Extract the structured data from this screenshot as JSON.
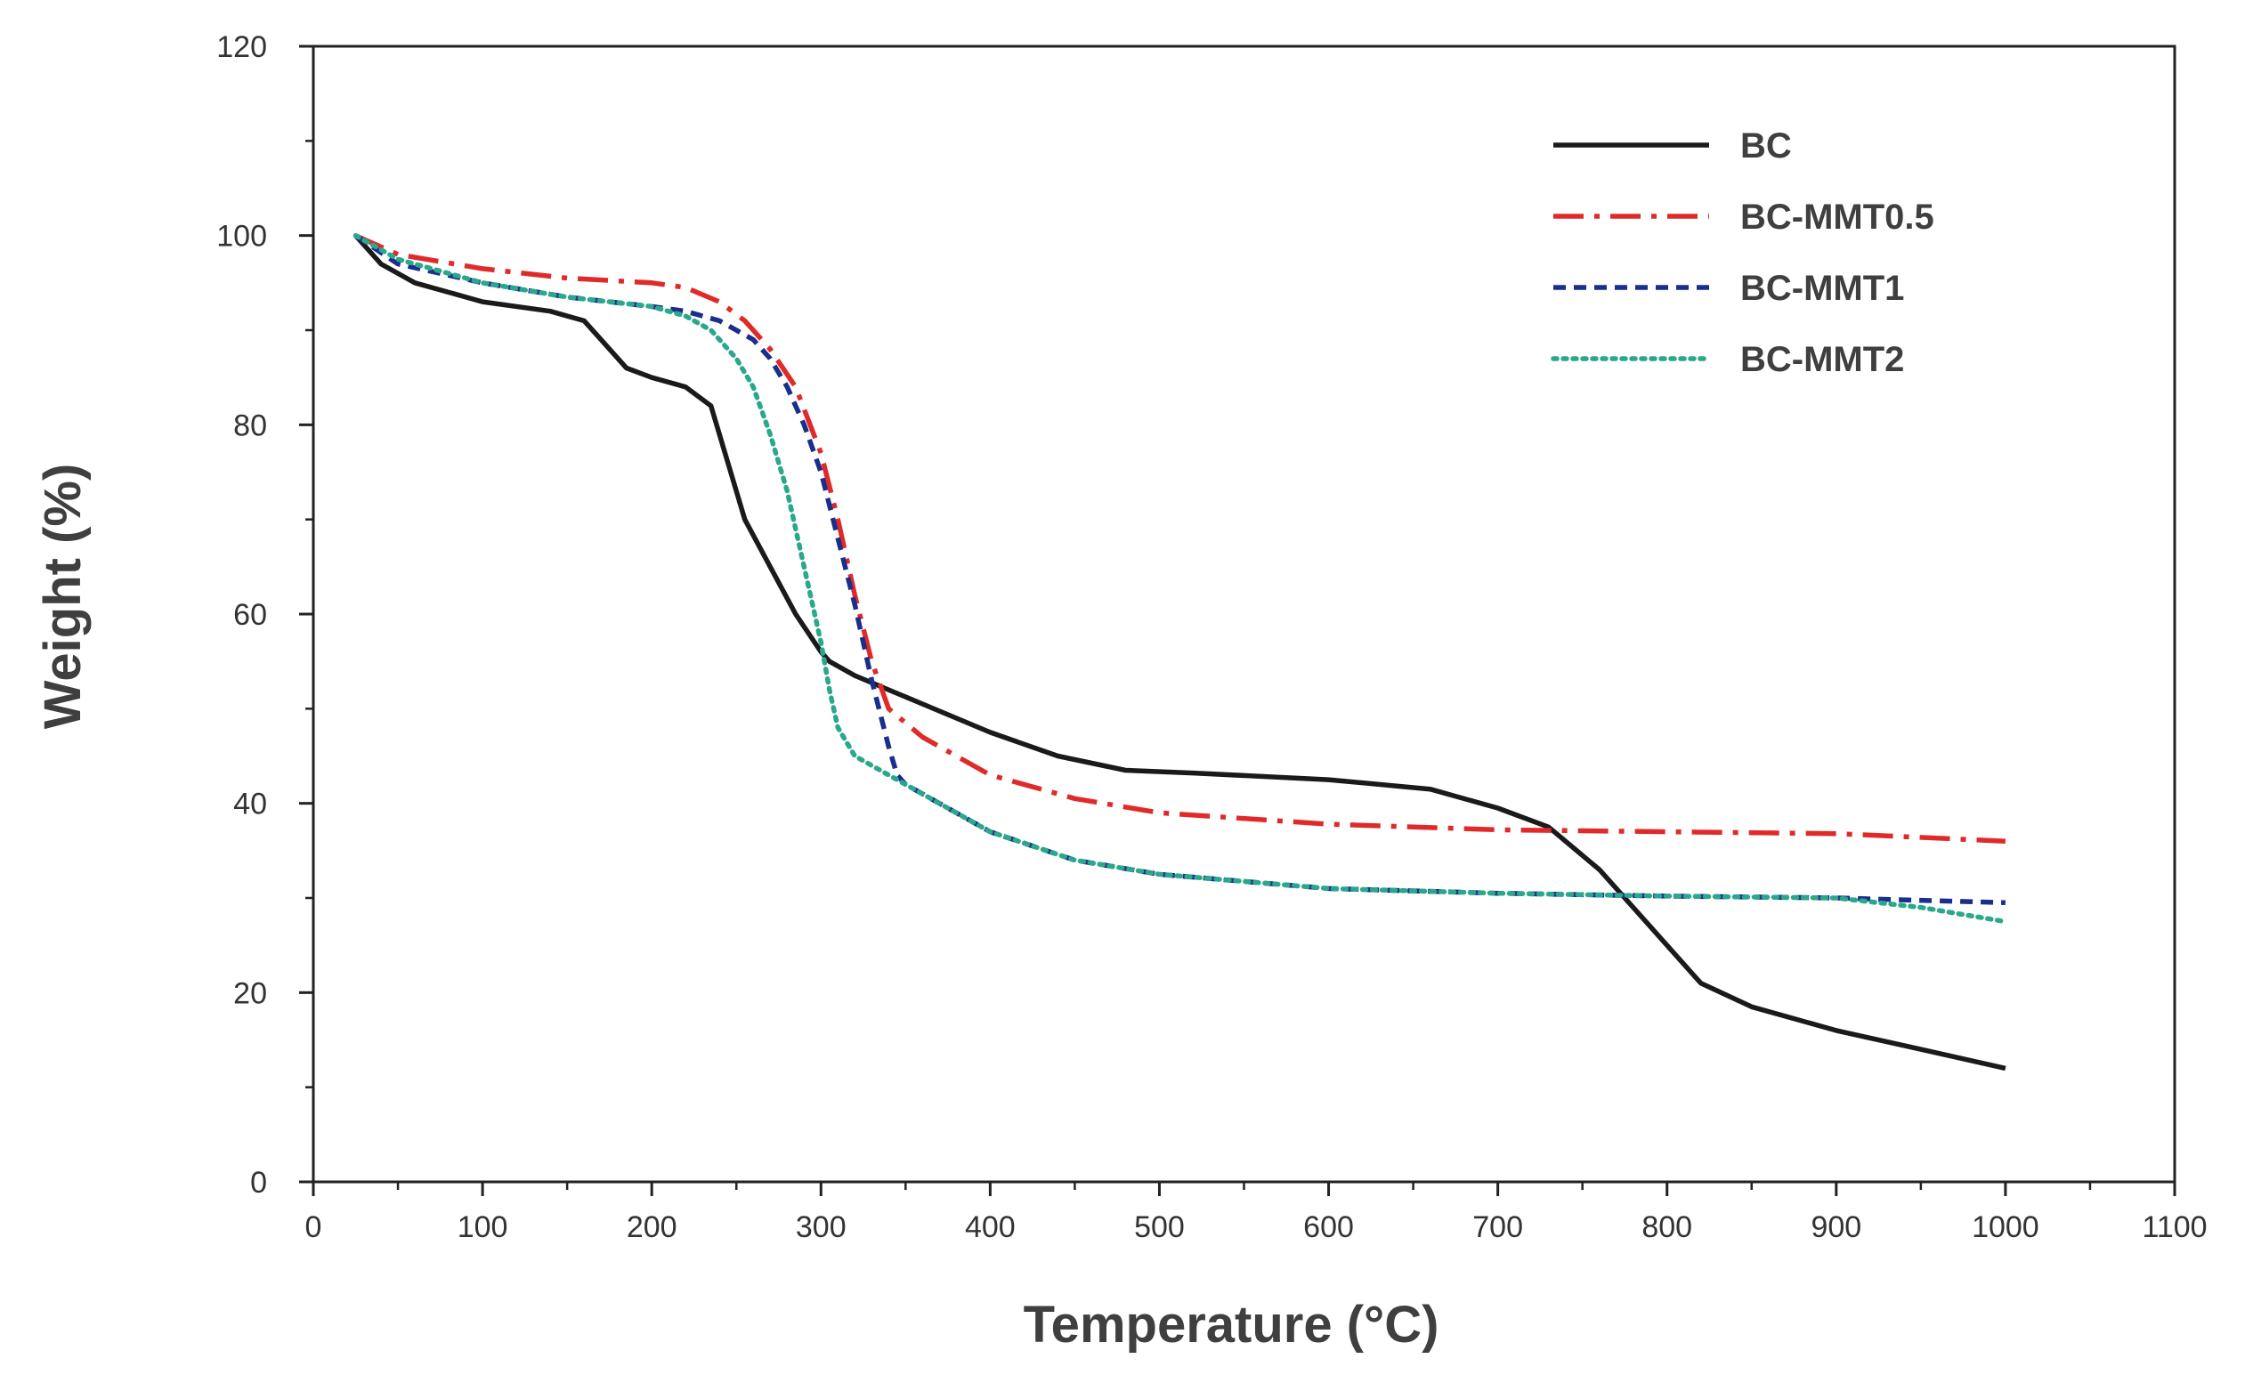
{
  "chart_data": {
    "type": "line",
    "title": "",
    "xlabel": "Temperature (°C)",
    "ylabel": "Weight (%)",
    "xlim": [
      0,
      1100
    ],
    "ylim": [
      0,
      120
    ],
    "xticks": [
      "0",
      "100",
      "200",
      "300",
      "400",
      "500",
      "600",
      "700",
      "800",
      "900",
      "1000",
      "1100"
    ],
    "yticks": [
      "0",
      "20",
      "40",
      "60",
      "80",
      "100",
      "120"
    ],
    "grid": false,
    "legend_position": "top-right",
    "series": [
      {
        "name": "BC",
        "color": "#1a1a1a",
        "dash": "solid",
        "x": [
          25,
          40,
          60,
          100,
          140,
          160,
          170,
          185,
          200,
          220,
          235,
          245,
          255,
          270,
          285,
          300,
          305,
          320,
          340,
          360,
          400,
          440,
          480,
          520,
          600,
          660,
          700,
          730,
          760,
          780,
          800,
          820,
          850,
          900,
          950,
          1000
        ],
        "y": [
          100,
          97,
          95,
          93,
          92,
          91,
          89,
          86,
          85,
          84,
          82,
          76,
          70,
          65,
          60,
          56,
          55,
          53.5,
          52,
          50.5,
          47.5,
          45,
          43.5,
          43.2,
          42.5,
          41.5,
          39.5,
          37.5,
          33,
          29,
          25,
          21,
          18.5,
          16,
          14,
          12
        ]
      },
      {
        "name": "BC-MMT0.5",
        "color": "#e02a2a",
        "dash": "dashdot",
        "x": [
          25,
          50,
          100,
          150,
          200,
          220,
          240,
          255,
          270,
          285,
          300,
          310,
          320,
          330,
          340,
          360,
          400,
          450,
          500,
          600,
          700,
          800,
          900,
          1000
        ],
        "y": [
          100,
          98,
          96.5,
          95.5,
          95,
          94.5,
          93,
          91,
          88,
          84,
          77,
          70,
          62,
          55,
          50,
          47,
          43,
          40.5,
          39,
          37.8,
          37.2,
          37,
          36.8,
          36
        ]
      },
      {
        "name": "BC-MMT1",
        "color": "#1a2e8c",
        "dash": "dash",
        "x": [
          25,
          50,
          100,
          150,
          200,
          220,
          240,
          260,
          270,
          280,
          290,
          300,
          310,
          320,
          330,
          340,
          345,
          350,
          370,
          400,
          450,
          500,
          600,
          700,
          800,
          900,
          1000
        ],
        "y": [
          100,
          97,
          95,
          93.5,
          92.5,
          92,
          91,
          89,
          87,
          84,
          80,
          75,
          68,
          61,
          53,
          46,
          43,
          42,
          40,
          37,
          34,
          32.5,
          31,
          30.5,
          30.2,
          30,
          29.5
        ]
      },
      {
        "name": "BC-MMT2",
        "color": "#2aa88c",
        "dash": "dot",
        "x": [
          25,
          50,
          100,
          150,
          200,
          220,
          235,
          250,
          260,
          270,
          280,
          290,
          300,
          305,
          310,
          320,
          340,
          370,
          400,
          450,
          500,
          600,
          700,
          800,
          900,
          950,
          1000
        ],
        "y": [
          100,
          97.5,
          95,
          93.5,
          92.5,
          91.5,
          90,
          87,
          84,
          79,
          73,
          65,
          57,
          52,
          48,
          45,
          43,
          40,
          37,
          34,
          32.5,
          31,
          30.5,
          30.2,
          30,
          29,
          27.5
        ]
      }
    ]
  }
}
